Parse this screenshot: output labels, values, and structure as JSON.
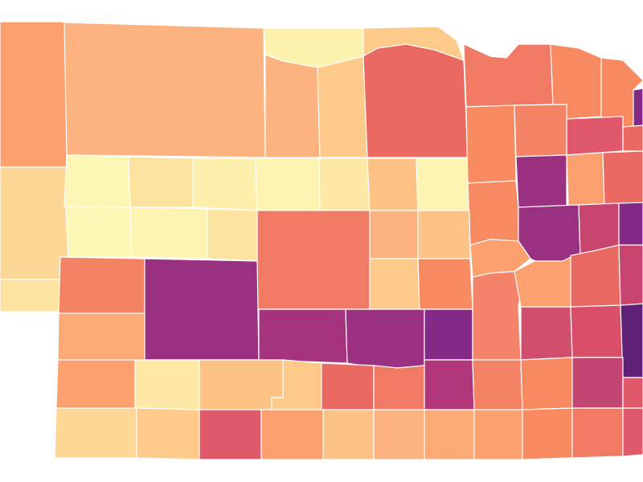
{
  "map": {
    "type": "choropleth",
    "region": "counties",
    "color_scale": [
      "#fcf7b4",
      "#fde3a0",
      "#fdca8a",
      "#fdb37f",
      "#fca06f",
      "#f88a62",
      "#f17a64",
      "#ea6a62",
      "#e0596a",
      "#c8456f",
      "#b2377a",
      "#993080",
      "#822a85",
      "#5f2175"
    ],
    "legend": "none"
  }
}
